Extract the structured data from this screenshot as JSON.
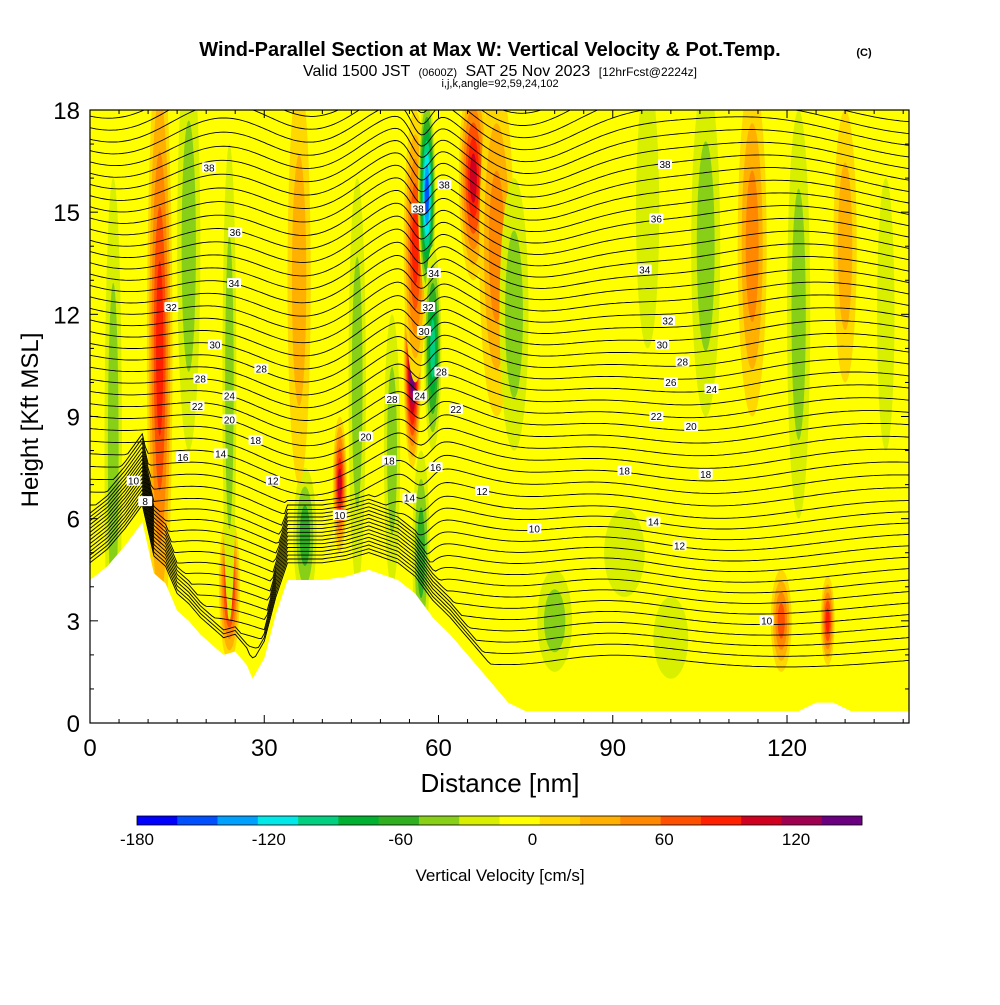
{
  "chart_data": {
    "type": "heatmap",
    "title": "Wind-Parallel Section at Max W: Vertical Velocity & Pot.Temp.",
    "title_mark": "(C)",
    "subtitle": {
      "valid": "Valid 1500 JST",
      "utc": "(0600Z)",
      "date": "SAT 25 Nov 2023",
      "forecast": "[12hrFcst@2224z]"
    },
    "params": "i,j,k,angle=92,59,24,102",
    "xlabel": "Distance [nm]",
    "ylabel": "Height [Kft MSL]",
    "xlim": [
      0,
      141
    ],
    "ylim": [
      0,
      18
    ],
    "x_ticks": [
      0,
      30,
      60,
      90,
      120
    ],
    "y_ticks": [
      0,
      3,
      6,
      9,
      12,
      15,
      18
    ],
    "colorbar": {
      "label": "Vertical Velocity [cm/s]",
      "ticks": [
        -180,
        -120,
        -60,
        0,
        60,
        120
      ],
      "range": [
        -180,
        150
      ],
      "colors": [
        "#0000ff",
        "#0050ff",
        "#00a0ff",
        "#00e8e8",
        "#00d080",
        "#00b030",
        "#30b020",
        "#88d018",
        "#d8f000",
        "#ffff00",
        "#ffd800",
        "#ffb000",
        "#ff8800",
        "#ff5000",
        "#ff2000",
        "#d00020",
        "#a00050",
        "#6a0080"
      ]
    },
    "contour_label": "Potential Temperature",
    "contour_levels": [
      8,
      10,
      12,
      14,
      16,
      18,
      20,
      22,
      24,
      26,
      28,
      30,
      32,
      34,
      36,
      38
    ],
    "terrain_kft": [
      [
        0,
        4.2
      ],
      [
        3,
        4.6
      ],
      [
        6,
        5.2
      ],
      [
        9,
        5.9
      ],
      [
        11,
        4.4
      ],
      [
        13,
        4.1
      ],
      [
        15,
        3.3
      ],
      [
        17,
        3.0
      ],
      [
        19,
        2.6
      ],
      [
        21,
        2.3
      ],
      [
        23,
        2.0
      ],
      [
        25,
        2.1
      ],
      [
        27,
        1.7
      ],
      [
        28,
        1.3
      ],
      [
        30,
        1.9
      ],
      [
        32,
        3.2
      ],
      [
        34,
        4.2
      ],
      [
        40,
        4.2
      ],
      [
        44,
        4.3
      ],
      [
        48,
        4.5
      ],
      [
        53,
        4.2
      ],
      [
        56,
        3.8
      ],
      [
        59,
        3.1
      ],
      [
        62,
        2.6
      ],
      [
        65,
        2.0
      ],
      [
        68,
        1.4
      ],
      [
        70,
        1.0
      ],
      [
        72,
        0.6
      ],
      [
        75,
        0.35
      ],
      [
        122,
        0.35
      ],
      [
        125,
        0.6
      ],
      [
        128,
        0.6
      ],
      [
        131,
        0.35
      ],
      [
        141,
        0.35
      ]
    ],
    "velocity_features": [
      {
        "x": 4,
        "y": 8,
        "w": 1.5,
        "h": 8,
        "value": -40
      },
      {
        "x": 12,
        "y": 11,
        "w": 2.2,
        "h": 9,
        "value": 90
      },
      {
        "x": 17,
        "y": 14,
        "w": 2,
        "h": 6,
        "value": -50
      },
      {
        "x": 24,
        "y": 4,
        "w": 1.8,
        "h": 2.2,
        "value": 100
      },
      {
        "x": 24,
        "y": 10,
        "w": 1.2,
        "h": 7,
        "value": -40
      },
      {
        "x": 37,
        "y": 5.5,
        "w": 2,
        "h": 2,
        "value": -60
      },
      {
        "x": 36,
        "y": 13,
        "w": 2,
        "h": 6,
        "value": 25
      },
      {
        "x": 43,
        "y": 7,
        "w": 1.2,
        "h": 2,
        "value": 100
      },
      {
        "x": 46,
        "y": 10,
        "w": 1.5,
        "h": 6,
        "value": -40
      },
      {
        "x": 52,
        "y": 8,
        "w": 1.4,
        "h": 4,
        "value": -50
      },
      {
        "x": 55.5,
        "y": 10.5,
        "w": 1.5,
        "h": 3,
        "value": 150
      },
      {
        "x": 56,
        "y": 14,
        "w": 2,
        "h": 4,
        "value": 90
      },
      {
        "x": 58,
        "y": 15.5,
        "w": 1.5,
        "h": 3,
        "value": -160
      },
      {
        "x": 59,
        "y": 11,
        "w": 1.5,
        "h": 3,
        "value": -100
      },
      {
        "x": 57,
        "y": 5,
        "w": 1.5,
        "h": 3,
        "value": -70
      },
      {
        "x": 66,
        "y": 16,
        "w": 2.5,
        "h": 3,
        "value": 100
      },
      {
        "x": 70,
        "y": 14,
        "w": 3,
        "h": 5,
        "value": 50
      },
      {
        "x": 73,
        "y": 12,
        "w": 2.5,
        "h": 4,
        "value": -40
      },
      {
        "x": 80,
        "y": 3,
        "w": 3,
        "h": 1.5,
        "value": -40
      },
      {
        "x": 92,
        "y": 5,
        "w": 3.5,
        "h": 1.3,
        "value": -30
      },
      {
        "x": 100,
        "y": 2.5,
        "w": 3,
        "h": 1.2,
        "value": -30
      },
      {
        "x": 96,
        "y": 15,
        "w": 2,
        "h": 4,
        "value": -30
      },
      {
        "x": 106,
        "y": 14,
        "w": 2.5,
        "h": 5,
        "value": -50
      },
      {
        "x": 114,
        "y": 14,
        "w": 2.5,
        "h": 5,
        "value": 45
      },
      {
        "x": 119,
        "y": 3,
        "w": 1.8,
        "h": 1.5,
        "value": 70
      },
      {
        "x": 122,
        "y": 12,
        "w": 2,
        "h": 6,
        "value": -50
      },
      {
        "x": 127,
        "y": 3,
        "w": 1.2,
        "h": 1.3,
        "value": 80
      },
      {
        "x": 130,
        "y": 14,
        "w": 2,
        "h": 4,
        "value": 35
      },
      {
        "x": 137,
        "y": 12,
        "w": 1.5,
        "h": 4,
        "value": -30
      }
    ],
    "contour_labels": [
      {
        "text": "38",
        "x": 20.5,
        "y": 16.3
      },
      {
        "text": "38",
        "x": 61,
        "y": 15.8
      },
      {
        "text": "38",
        "x": 56.5,
        "y": 15.1
      },
      {
        "text": "38",
        "x": 99,
        "y": 16.4
      },
      {
        "text": "36",
        "x": 25,
        "y": 14.4
      },
      {
        "text": "36",
        "x": 97.5,
        "y": 14.8
      },
      {
        "text": "34",
        "x": 24.8,
        "y": 12.9
      },
      {
        "text": "34",
        "x": 59.2,
        "y": 13.2
      },
      {
        "text": "34",
        "x": 95.5,
        "y": 13.3
      },
      {
        "text": "32",
        "x": 14,
        "y": 12.2
      },
      {
        "text": "32",
        "x": 58.2,
        "y": 12.2
      },
      {
        "text": "32",
        "x": 99.5,
        "y": 11.8
      },
      {
        "text": "30",
        "x": 21.5,
        "y": 11.1
      },
      {
        "text": "30",
        "x": 57.5,
        "y": 11.5
      },
      {
        "text": "30",
        "x": 98.5,
        "y": 11.1
      },
      {
        "text": "28",
        "x": 19,
        "y": 10.1
      },
      {
        "text": "28",
        "x": 29.5,
        "y": 10.4
      },
      {
        "text": "28",
        "x": 60.5,
        "y": 10.3
      },
      {
        "text": "28",
        "x": 52,
        "y": 9.5
      },
      {
        "text": "28",
        "x": 102,
        "y": 10.6
      },
      {
        "text": "26",
        "x": 100,
        "y": 10.0
      },
      {
        "text": "24",
        "x": 24,
        "y": 9.6
      },
      {
        "text": "24",
        "x": 56.8,
        "y": 9.6
      },
      {
        "text": "24",
        "x": 107,
        "y": 9.8
      },
      {
        "text": "22",
        "x": 18.5,
        "y": 9.3
      },
      {
        "text": "22",
        "x": 63,
        "y": 9.2
      },
      {
        "text": "22",
        "x": 97.5,
        "y": 9.0
      },
      {
        "text": "20",
        "x": 24,
        "y": 8.9
      },
      {
        "text": "20",
        "x": 47.5,
        "y": 8.4
      },
      {
        "text": "20",
        "x": 103.5,
        "y": 8.7
      },
      {
        "text": "18",
        "x": 28.5,
        "y": 8.3
      },
      {
        "text": "18",
        "x": 51.5,
        "y": 7.7
      },
      {
        "text": "18",
        "x": 92,
        "y": 7.4
      },
      {
        "text": "18",
        "x": 106,
        "y": 7.3
      },
      {
        "text": "16",
        "x": 16,
        "y": 7.8
      },
      {
        "text": "16",
        "x": 59.5,
        "y": 7.5
      },
      {
        "text": "14",
        "x": 22.5,
        "y": 7.9
      },
      {
        "text": "14",
        "x": 55,
        "y": 6.6
      },
      {
        "text": "14",
        "x": 97,
        "y": 5.9
      },
      {
        "text": "12",
        "x": 31.5,
        "y": 7.1
      },
      {
        "text": "12",
        "x": 67.5,
        "y": 6.8
      },
      {
        "text": "12",
        "x": 101.5,
        "y": 5.2
      },
      {
        "text": "10",
        "x": 7.5,
        "y": 7.1
      },
      {
        "text": "10",
        "x": 43,
        "y": 6.1
      },
      {
        "text": "10",
        "x": 76.5,
        "y": 5.7
      },
      {
        "text": "10",
        "x": 116.5,
        "y": 3.0
      },
      {
        "text": "8",
        "x": 9.5,
        "y": 6.5
      }
    ]
  }
}
